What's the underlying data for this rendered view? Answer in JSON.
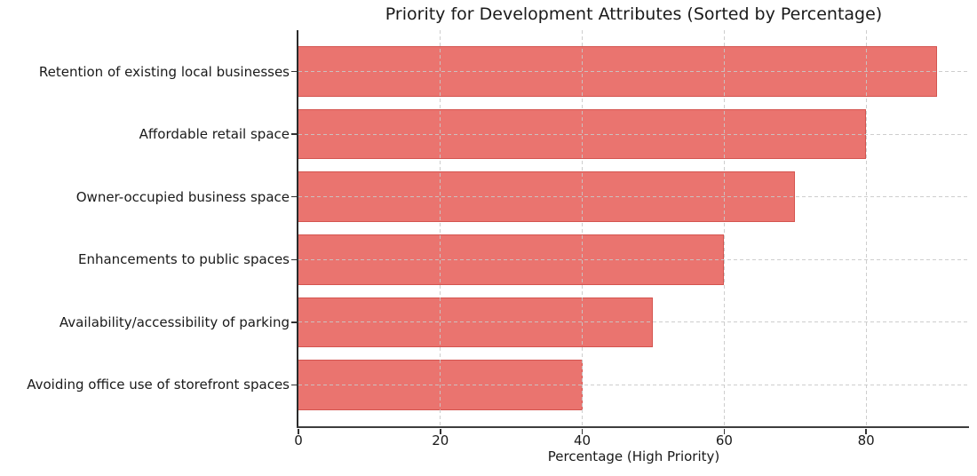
{
  "chart_data": {
    "type": "bar",
    "orientation": "horizontal",
    "title": "Priority for Development Attributes (Sorted by Percentage)",
    "xlabel": "Percentage (High Priority)",
    "ylabel": "",
    "categories": [
      "Retention of existing local businesses",
      "Affordable retail space",
      "Owner-occupied business space",
      "Enhancements to public spaces",
      "Availability/accessibility of parking",
      "Avoiding office use of storefront spaces"
    ],
    "values": [
      90,
      80,
      70,
      60,
      50,
      40
    ],
    "xlim": [
      0,
      94.5
    ],
    "xticks": [
      0,
      20,
      40,
      60,
      80
    ],
    "grid": {
      "style": "dashed",
      "axes": "both",
      "color": "#cccccc",
      "above_bars": true
    },
    "legend_position": "none",
    "colors": {
      "bar_fill": "#ea746f",
      "bar_edge": "#d4544f",
      "spine": "#333333",
      "text": "#1a1a1a"
    }
  }
}
